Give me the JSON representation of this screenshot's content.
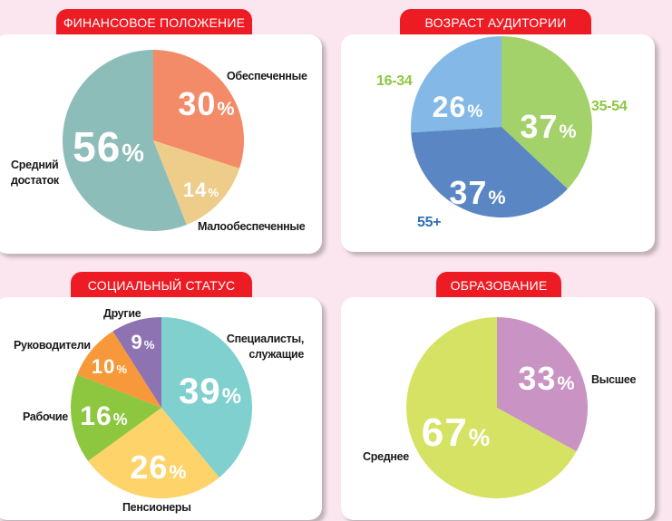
{
  "chart_data": [
    {
      "type": "pie",
      "title": "ФИНАНСОВОЕ ПОЛОЖЕНИЕ",
      "unit": "%",
      "slices": [
        {
          "label": "Обеспеченные",
          "value": 30,
          "color": "#f48b68"
        },
        {
          "label": "Малообеспеченные",
          "value": 14,
          "color": "#eecd8b"
        },
        {
          "label": "Средний достаток",
          "value": 56,
          "color": "#8dbdb9"
        }
      ]
    },
    {
      "type": "pie",
      "title": "ВОЗРАСТ АУДИТОРИИ",
      "unit": "%",
      "slices": [
        {
          "label": "35-54",
          "value": 37,
          "color": "#a3d16a"
        },
        {
          "label": "55+",
          "value": 37,
          "color": "#5b86c4"
        },
        {
          "label": "16-34",
          "value": 26,
          "color": "#84b8e6"
        }
      ]
    },
    {
      "type": "pie",
      "title": "СОЦИАЛЬНЫЙ СТАТУС",
      "unit": "%",
      "slices": [
        {
          "label": "Специалисты, служащие",
          "value": 39,
          "color": "#7fd0cf"
        },
        {
          "label": "Пенсионеры",
          "value": 26,
          "color": "#fdd36a"
        },
        {
          "label": "Рабочие",
          "value": 16,
          "color": "#8dc63f"
        },
        {
          "label": "Руководители",
          "value": 10,
          "color": "#f7993b"
        },
        {
          "label": "Другие",
          "value": 9,
          "color": "#8e73b3"
        }
      ]
    },
    {
      "type": "pie",
      "title": "ОБРАЗОВАНИЕ",
      "unit": "%",
      "slices": [
        {
          "label": "Высшее",
          "value": 33,
          "color": "#c993c3"
        },
        {
          "label": "Среднее",
          "value": 67,
          "color": "#d6e264"
        }
      ]
    }
  ]
}
